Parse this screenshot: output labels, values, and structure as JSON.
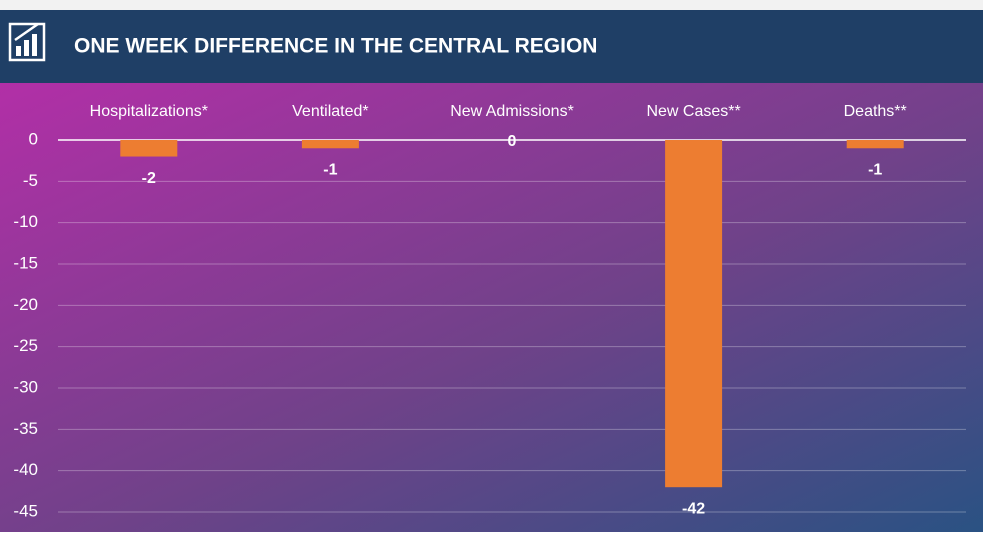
{
  "chart_data": {
    "type": "bar",
    "title": "ONE WEEK DIFFERENCE IN THE CENTRAL REGION",
    "categories": [
      "Hospitalizations*",
      "Ventilated*",
      "New Admissions*",
      "New Cases**",
      "Deaths**"
    ],
    "values": [
      -2,
      -1,
      0,
      -42,
      -1
    ],
    "color": "#ed7d31",
    "ylim": [
      -45,
      0
    ],
    "yticks": [
      0,
      -5,
      -10,
      -15,
      -20,
      -25,
      -30,
      -35,
      -40,
      -45
    ],
    "grid": true
  }
}
